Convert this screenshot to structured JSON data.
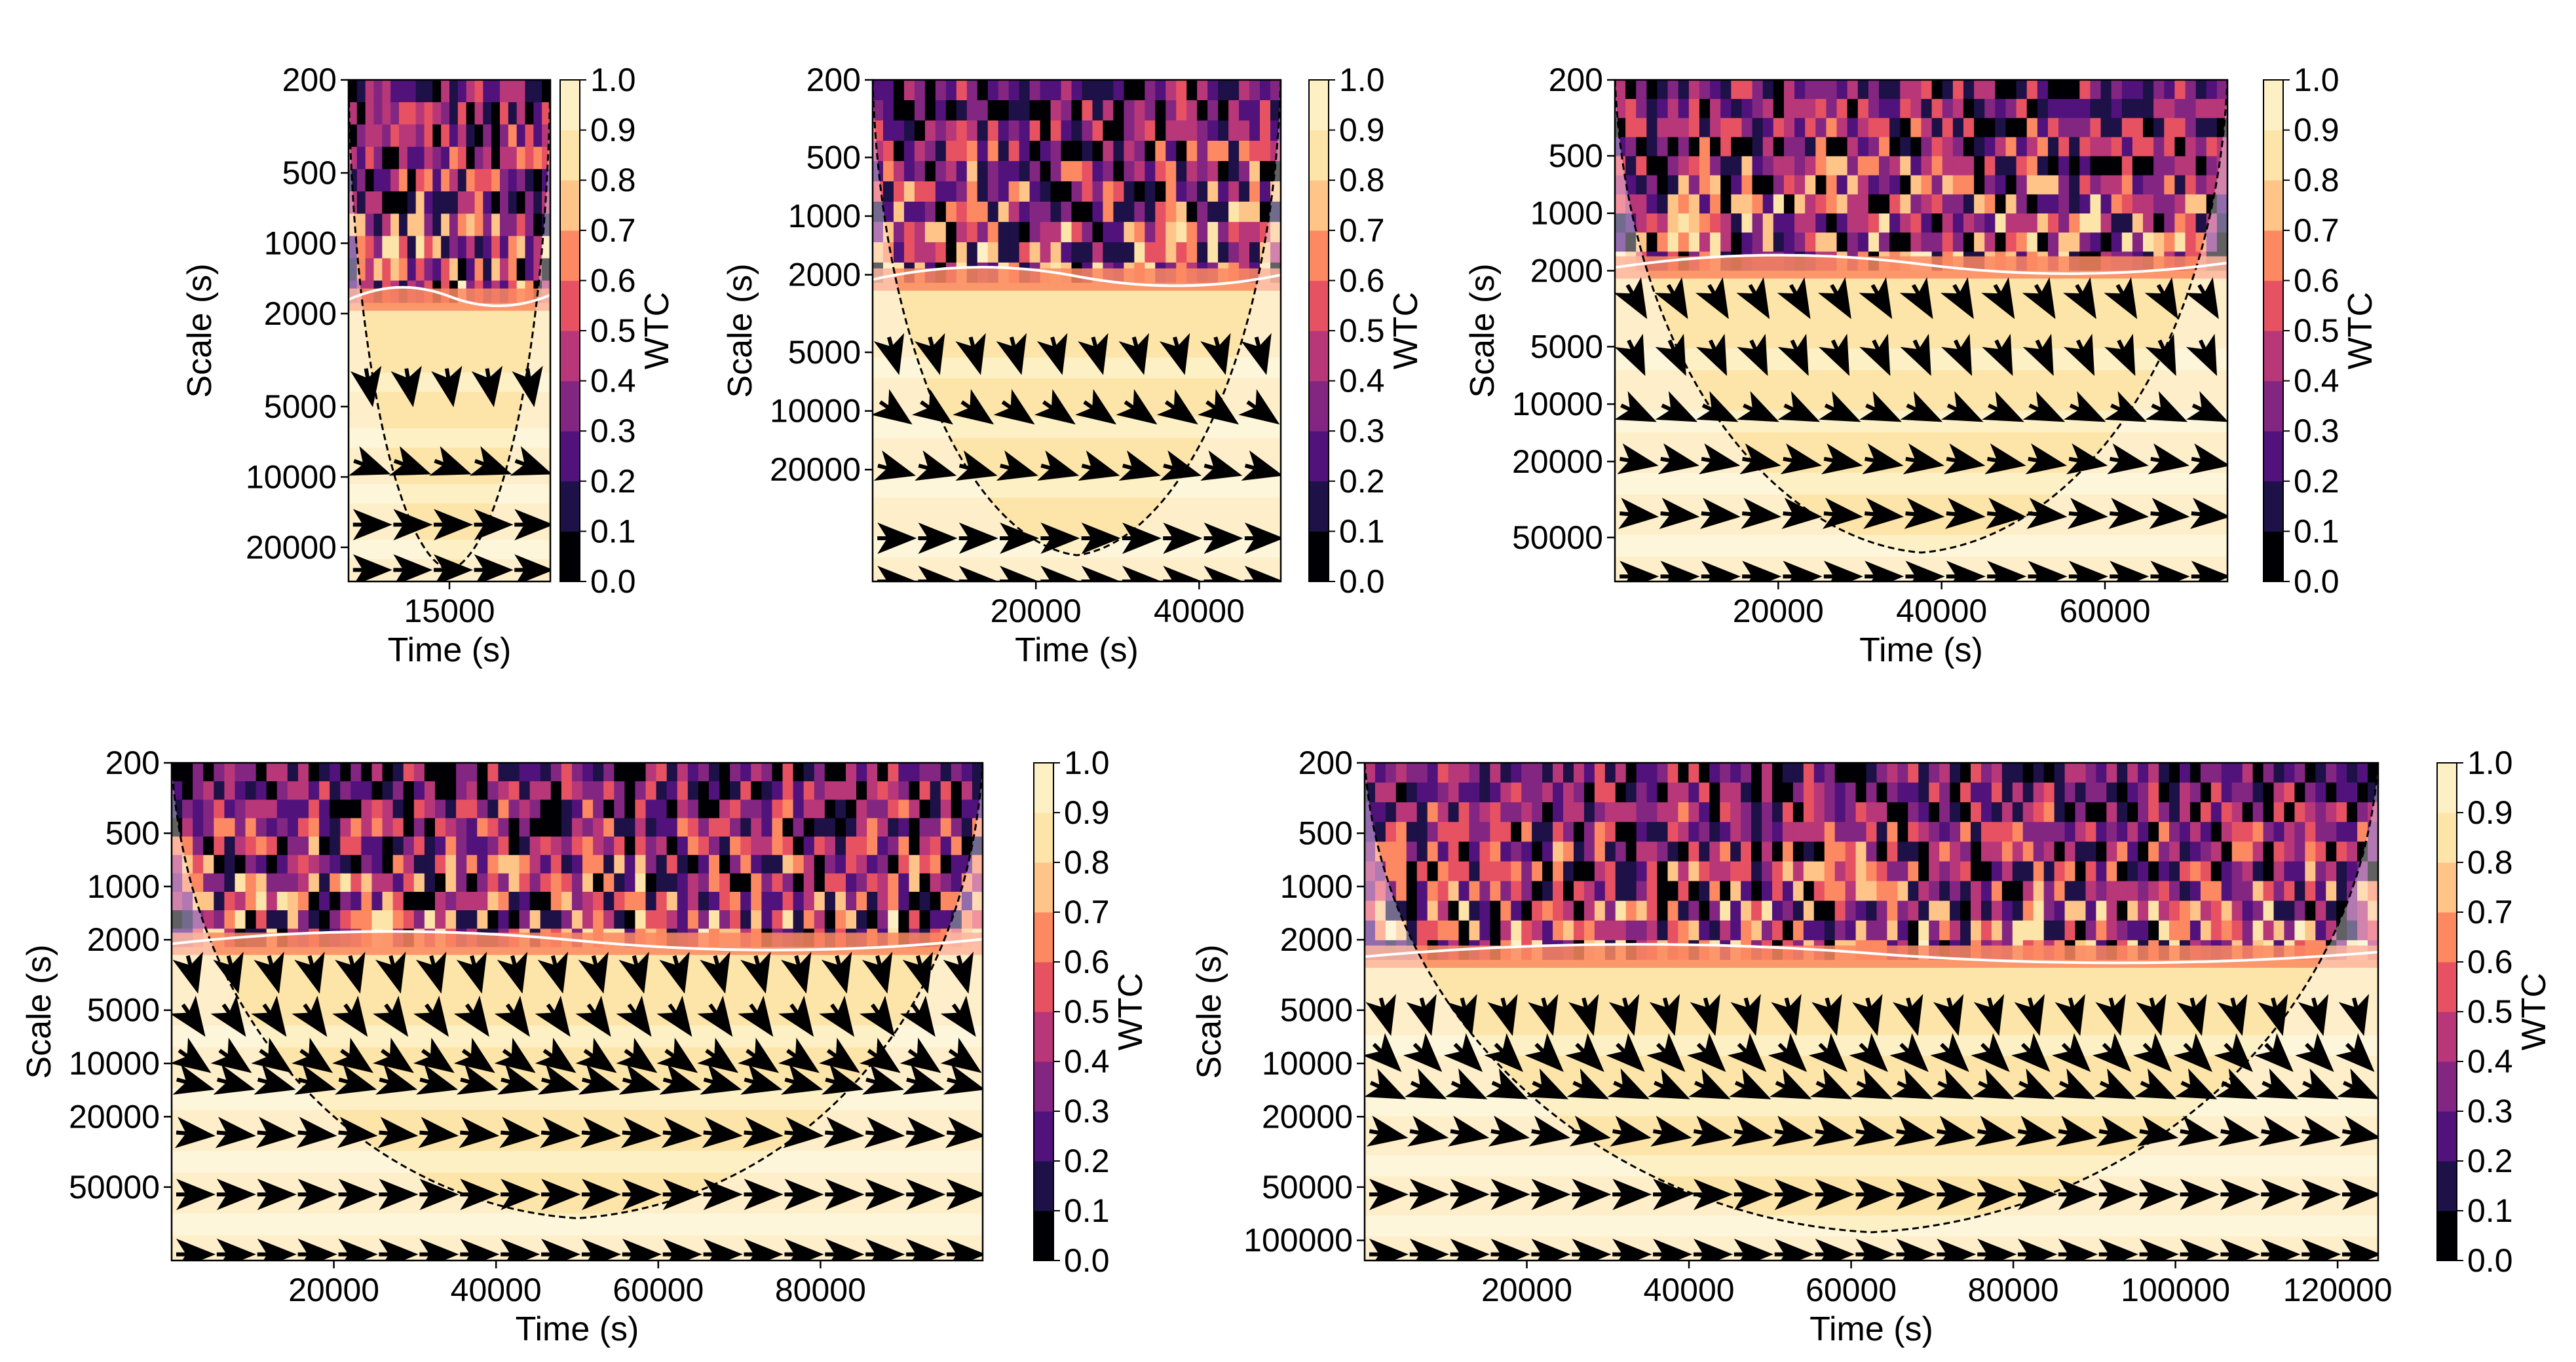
{
  "colors": {
    "scale": [
      "#000004",
      "#1d1147",
      "#51127c",
      "#832681",
      "#b73779",
      "#e75263",
      "#fc8961",
      "#fec488",
      "#fde4a8",
      "#fcf0c4"
    ],
    "background_gray": "#b8b4bc",
    "contour": "#ffffff",
    "arrow": "#000000"
  },
  "chart_data": [
    {
      "type": "heatmap",
      "title": "",
      "xlabel": "Time (s)",
      "ylabel": "Scale (s)",
      "xlim": [
        11500,
        18500
      ],
      "ylim": [
        200,
        28000
      ],
      "xticks": [
        15000
      ],
      "xtick_labels": [
        "15000"
      ],
      "yticks": [
        200,
        500,
        1000,
        2000,
        5000,
        10000,
        20000
      ],
      "ytick_labels": [
        "200",
        "500",
        "1000",
        "2000",
        "5000",
        "10000",
        "20000"
      ],
      "colorbar": {
        "label": "WTC",
        "ticks": [
          "0.0",
          "0.1",
          "0.2",
          "0.3",
          "0.4",
          "0.5",
          "0.6",
          "0.7",
          "0.8",
          "0.9",
          "1.0"
        ]
      },
      "coi_apex_scale": 25000,
      "coherent_band_scale": [
        1800,
        28000
      ],
      "arrow_phase_deg": [
        [
          4000,
          -80
        ],
        [
          9000,
          -20
        ],
        [
          16000,
          0
        ],
        [
          25000,
          0
        ]
      ]
    },
    {
      "type": "heatmap",
      "title": "",
      "xlabel": "Time (s)",
      "ylabel": "Scale (s)",
      "xlim": [
        0,
        50000
      ],
      "ylim": [
        200,
        75000
      ],
      "xticks": [
        20000,
        40000
      ],
      "xtick_labels": [
        "20000",
        "40000"
      ],
      "yticks": [
        200,
        500,
        1000,
        2000,
        5000,
        10000,
        20000
      ],
      "ytick_labels": [
        "200",
        "500",
        "1000",
        "2000",
        "5000",
        "10000",
        "20000"
      ],
      "colorbar": {
        "label": "WTC",
        "ticks": [
          "0.0",
          "0.1",
          "0.2",
          "0.3",
          "0.4",
          "0.5",
          "0.6",
          "0.7",
          "0.8",
          "0.9",
          "1.0"
        ]
      },
      "coi_apex_scale": 55000,
      "coherent_band_scale": [
        2200,
        75000
      ],
      "arrow_phase_deg": [
        [
          5000,
          -75
        ],
        [
          10000,
          -35
        ],
        [
          20000,
          -15
        ],
        [
          45000,
          0
        ],
        [
          75000,
          0
        ]
      ]
    },
    {
      "type": "heatmap",
      "title": "",
      "xlabel": "Time (s)",
      "ylabel": "Scale (s)",
      "xlim": [
        0,
        75000
      ],
      "ylim": [
        200,
        85000
      ],
      "xticks": [
        20000,
        40000,
        60000
      ],
      "xtick_labels": [
        "20000",
        "40000",
        "60000"
      ],
      "yticks": [
        200,
        500,
        1000,
        2000,
        5000,
        10000,
        20000,
        50000
      ],
      "ytick_labels": [
        "200",
        "500",
        "1000",
        "2000",
        "5000",
        "10000",
        "20000",
        "50000"
      ],
      "colorbar": {
        "label": "WTC",
        "ticks": [
          "0.0",
          "0.1",
          "0.2",
          "0.3",
          "0.4",
          "0.5",
          "0.6",
          "0.7",
          "0.8",
          "0.9",
          "1.0"
        ]
      },
      "coi_apex_scale": 60000,
      "coherent_band_scale": [
        2000,
        85000
      ],
      "arrow_phase_deg": [
        [
          2800,
          -60
        ],
        [
          5500,
          -65
        ],
        [
          11000,
          -25
        ],
        [
          20000,
          -10
        ],
        [
          38000,
          -5
        ],
        [
          80000,
          0
        ]
      ]
    },
    {
      "type": "heatmap",
      "title": "",
      "xlabel": "Time (s)",
      "ylabel": "Scale (s)",
      "xlim": [
        0,
        100000
      ],
      "ylim": [
        200,
        130000
      ],
      "xticks": [
        20000,
        40000,
        60000,
        80000
      ],
      "xtick_labels": [
        "20000",
        "40000",
        "60000",
        "80000"
      ],
      "yticks": [
        200,
        500,
        1000,
        2000,
        5000,
        10000,
        20000,
        50000
      ],
      "ytick_labels": [
        "200",
        "500",
        "1000",
        "2000",
        "5000",
        "10000",
        "20000",
        "50000"
      ],
      "colorbar": {
        "label": "WTC",
        "ticks": [
          "0.0",
          "0.1",
          "0.2",
          "0.3",
          "0.4",
          "0.5",
          "0.6",
          "0.7",
          "0.8",
          "0.9",
          "1.0"
        ]
      },
      "coi_apex_scale": 75000,
      "coherent_band_scale": [
        2200,
        130000
      ],
      "arrow_phase_deg": [
        [
          3000,
          -75
        ],
        [
          5500,
          -55
        ],
        [
          9500,
          -35
        ],
        [
          13000,
          -15
        ],
        [
          25000,
          -5
        ],
        [
          55000,
          0
        ],
        [
          120000,
          0
        ]
      ]
    },
    {
      "type": "heatmap",
      "title": "",
      "xlabel": "Time (s)",
      "ylabel": "Scale (s)",
      "xlim": [
        0,
        125000
      ],
      "ylim": [
        200,
        130000
      ],
      "xticks": [
        20000,
        40000,
        60000,
        80000,
        100000,
        120000
      ],
      "xtick_labels": [
        "20000",
        "40000",
        "60000",
        "80000",
        "100000",
        "120000"
      ],
      "yticks": [
        200,
        500,
        1000,
        2000,
        5000,
        10000,
        20000,
        50000,
        100000
      ],
      "ytick_labels": [
        "200",
        "500",
        "1000",
        "2000",
        "5000",
        "10000",
        "20000",
        "50000",
        "100000"
      ],
      "colorbar": {
        "label": "WTC",
        "ticks": [
          "0.0",
          "0.1",
          "0.2",
          "0.3",
          "0.4",
          "0.5",
          "0.6",
          "0.7",
          "0.8",
          "0.9",
          "1.0"
        ]
      },
      "coi_apex_scale": 90000,
      "coherent_band_scale": [
        2600,
        130000
      ],
      "arrow_phase_deg": [
        [
          5200,
          -75
        ],
        [
          9000,
          -45
        ],
        [
          14000,
          -25
        ],
        [
          25000,
          -10
        ],
        [
          55000,
          0
        ],
        [
          120000,
          0
        ]
      ]
    }
  ]
}
